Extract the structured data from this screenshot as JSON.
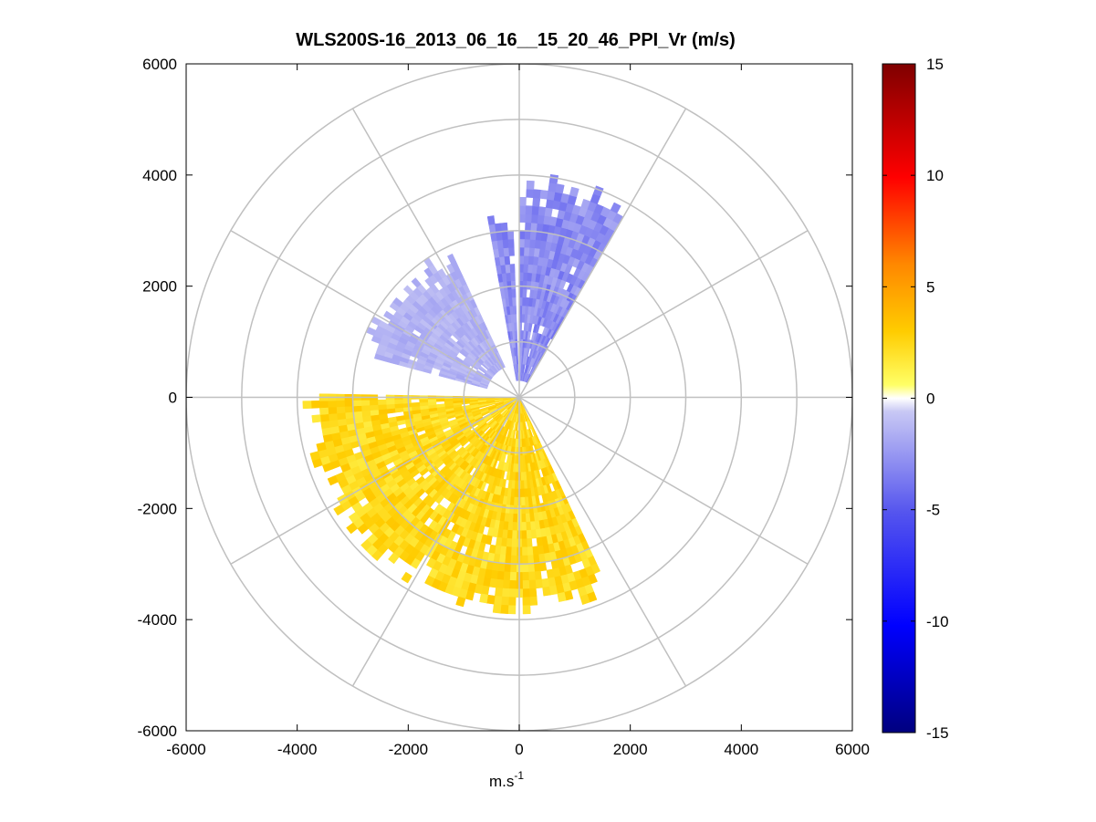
{
  "chart_data": {
    "type": "heatmap",
    "title": "WLS200S-16_2013_06_16__15_20_46_PPI_Vr (m/s)",
    "xlabel": "m.s",
    "xlabel_superscript": "-1",
    "ylabel": "",
    "xlim": [
      -6000,
      6000
    ],
    "ylim": [
      -6000,
      6000
    ],
    "x_ticks": [
      "-6000",
      "-4000",
      "-2000",
      "0",
      "2000",
      "4000",
      "6000"
    ],
    "y_ticks": [
      "6000",
      "4000",
      "2000",
      "0",
      "-2000",
      "-4000",
      "-6000"
    ],
    "grid": true,
    "polar_grid": {
      "range_rings": [
        1000,
        2000,
        3000,
        4000,
        5000,
        6000
      ],
      "azimuth_step_deg": 30
    },
    "colorbar": {
      "min": -15,
      "max": 15,
      "ticks": [
        "15",
        "10",
        "5",
        "0",
        "-5",
        "-10",
        "-15"
      ],
      "colormap": "blue-white-yellow-red"
    },
    "sectors": [
      {
        "label": "positive radial velocity (toward southwest)",
        "az_start_deg": 155,
        "az_end_deg": 270,
        "r_min": 0,
        "r_max": 3900,
        "mean_value": 2.5
      },
      {
        "label": "negative radial velocity (northwest)",
        "az_start_deg": 285,
        "az_end_deg": 335,
        "r_min": 600,
        "r_max": 2900,
        "mean_value": -1.5
      },
      {
        "label": "negative radial velocity (north)",
        "az_start_deg": 0,
        "az_end_deg": 30,
        "r_min": 300,
        "r_max": 4000,
        "mean_value": -3.0
      },
      {
        "label": "negative radial velocity (north-northwest)",
        "az_start_deg": 350,
        "az_end_deg": 358,
        "r_min": 300,
        "r_max": 3300,
        "mean_value": -3.0
      }
    ]
  }
}
